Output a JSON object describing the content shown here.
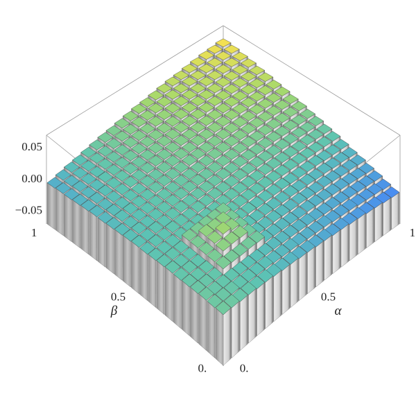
{
  "chart_data": {
    "type": "bar3d",
    "xlabel": "α",
    "ylabel": "β",
    "x": [
      0,
      0.05,
      0.1,
      0.15,
      0.2,
      0.25,
      0.3,
      0.35,
      0.4,
      0.45,
      0.5,
      0.55,
      0.6,
      0.65,
      0.7,
      0.75,
      0.8,
      0.85,
      0.9,
      0.95,
      1
    ],
    "y": [
      0,
      0.05,
      0.1,
      0.15,
      0.2,
      0.25,
      0.3,
      0.35,
      0.4,
      0.45,
      0.5,
      0.55,
      0.6,
      0.65,
      0.7,
      0.75,
      0.8,
      0.85,
      0.9,
      0.95,
      1
    ],
    "values": [
      [
        0.01,
        0.009,
        0.007,
        0.006,
        0.004,
        0.003,
        0.001,
        -0.001,
        -0.002,
        -0.004,
        -0.005,
        -0.007,
        -0.008,
        -0.01,
        -0.011,
        -0.013,
        -0.014,
        -0.016,
        -0.017,
        -0.019,
        -0.02
      ],
      [
        0.009,
        0.008,
        0.007,
        0.005,
        0.004,
        0.003,
        0.002,
        0,
        -0.001,
        -0.002,
        -0.004,
        -0.005,
        -0.006,
        -0.007,
        -0.009,
        -0.01,
        -0.011,
        -0.013,
        -0.014,
        -0.015,
        -0.017
      ],
      [
        0.009,
        0.007,
        0.006,
        0.005,
        0.004,
        0.003,
        0.002,
        0.001,
        0,
        -0.001,
        -0.002,
        -0.003,
        -0.004,
        -0.006,
        -0.007,
        -0.008,
        -0.009,
        -0.01,
        -0.011,
        -0.012,
        -0.013
      ],
      [
        0.008,
        0.007,
        0.006,
        0.013,
        0.012,
        0.011,
        0.011,
        0.01,
        0.001,
        0,
        -0.001,
        -0.002,
        -0.003,
        -0.003,
        -0.004,
        -0.005,
        -0.006,
        -0.007,
        -0.008,
        -0.009,
        -0.01
      ],
      [
        0.007,
        0.006,
        0.006,
        0.013,
        0.019,
        0.019,
        0.018,
        0.01,
        0.002,
        0.001,
        0.001,
        0,
        -0.001,
        -0.001,
        -0.002,
        -0.003,
        -0.003,
        -0.004,
        -0.005,
        -0.005,
        -0.006
      ],
      [
        0.006,
        0.006,
        0.005,
        0.013,
        0.02,
        0.024,
        0.019,
        0.011,
        0.003,
        0.002,
        0.002,
        0.001,
        0.001,
        0.001,
        0,
        0,
        -0.001,
        -0.001,
        -0.002,
        -0.002,
        -0.003
      ],
      [
        0.006,
        0.005,
        0.005,
        0.013,
        0.02,
        0.019,
        0.019,
        0.012,
        0.004,
        0.004,
        0.003,
        0.003,
        0.003,
        0.003,
        0.002,
        0.002,
        0.002,
        0.002,
        0.001,
        0.001,
        0.001
      ],
      [
        0.005,
        0.005,
        0.005,
        0.013,
        0.013,
        0.013,
        0.013,
        0.013,
        0.005,
        0.005,
        0.005,
        0.005,
        0.005,
        0.005,
        0.005,
        0.005,
        0.005,
        0.005,
        0.005,
        0.005,
        0.005
      ],
      [
        0.004,
        0.004,
        0.004,
        0.005,
        0.005,
        0.005,
        0.005,
        0.005,
        0.006,
        0.006,
        0.006,
        0.006,
        0.006,
        0.007,
        0.007,
        0.007,
        0.007,
        0.007,
        0.008,
        0.008,
        0.008
      ],
      [
        0.003,
        0.004,
        0.004,
        0.005,
        0.005,
        0.005,
        0.006,
        0.006,
        0.007,
        0.007,
        0.007,
        0.008,
        0.008,
        0.009,
        0.009,
        0.009,
        0.01,
        0.01,
        0.011,
        0.011,
        0.012
      ],
      [
        0.003,
        0.003,
        0.004,
        0.004,
        0.005,
        0.006,
        0.006,
        0.007,
        0.008,
        0.008,
        0.009,
        0.009,
        0.01,
        0.011,
        0.011,
        0.012,
        0.013,
        0.013,
        0.014,
        0.014,
        0.015
      ],
      [
        0.002,
        0.003,
        0.003,
        0.004,
        0.005,
        0.006,
        0.007,
        0.008,
        0.009,
        0.009,
        0.01,
        0.011,
        0.012,
        0.013,
        0.014,
        0.014,
        0.015,
        0.016,
        0.017,
        0.018,
        0.019
      ],
      [
        0.001,
        0.002,
        0.003,
        0.004,
        0.005,
        0.006,
        0.007,
        0.008,
        0.009,
        0.01,
        0.011,
        0.013,
        0.014,
        0.015,
        0.016,
        0.017,
        0.018,
        0.019,
        0.02,
        0.021,
        0.022
      ],
      [
        0,
        0.002,
        0.003,
        0.004,
        0.005,
        0.007,
        0.008,
        0.009,
        0.01,
        0.012,
        0.013,
        0.014,
        0.015,
        0.017,
        0.018,
        0.019,
        0.02,
        0.022,
        0.023,
        0.024,
        0.026
      ],
      [
        -0.001,
        0.001,
        0.002,
        0.004,
        0.005,
        0.007,
        0.008,
        0.01,
        0.011,
        0.013,
        0.014,
        0.016,
        0.017,
        0.019,
        0.02,
        0.022,
        0.023,
        0.025,
        0.026,
        0.028,
        0.029
      ],
      [
        -0.001,
        0,
        0.002,
        0.004,
        0.006,
        0.007,
        0.009,
        0.011,
        0.012,
        0.014,
        0.016,
        0.017,
        0.019,
        0.021,
        0.022,
        0.024,
        0.026,
        0.027,
        0.029,
        0.031,
        0.033
      ],
      [
        -0.002,
        0,
        0.002,
        0.004,
        0.006,
        0.008,
        0.009,
        0.011,
        0.013,
        0.015,
        0.017,
        0.019,
        0.021,
        0.023,
        0.025,
        0.027,
        0.028,
        0.03,
        0.032,
        0.034,
        0.036
      ],
      [
        -0.003,
        -0.001,
        0.001,
        0.004,
        0.006,
        0.008,
        0.01,
        0.012,
        0.014,
        0.016,
        0.018,
        0.02,
        0.023,
        0.025,
        0.027,
        0.029,
        0.031,
        0.033,
        0.035,
        0.037,
        0.04
      ],
      [
        -0.004,
        -0.001,
        0.001,
        0.003,
        0.006,
        0.008,
        0.01,
        0.013,
        0.015,
        0.017,
        0.02,
        0.022,
        0.024,
        0.027,
        0.029,
        0.031,
        0.034,
        0.036,
        0.038,
        0.041,
        0.043
      ],
      [
        -0.004,
        -0.002,
        0.001,
        0.003,
        0.006,
        0.008,
        0.011,
        0.014,
        0.016,
        0.019,
        0.021,
        0.024,
        0.026,
        0.029,
        0.031,
        0.034,
        0.036,
        0.039,
        0.041,
        0.044,
        0.047
      ],
      [
        -0.005,
        -0.002,
        0.001,
        0.003,
        0.006,
        0.009,
        0.012,
        0.014,
        0.017,
        0.02,
        0.023,
        0.025,
        0.028,
        0.031,
        0.034,
        0.036,
        0.039,
        0.042,
        0.045,
        0.047,
        0.05
      ]
    ],
    "xlim": [
      -0.025,
      1.025
    ],
    "ylim": [
      -0.025,
      1.025
    ],
    "zlim": [
      -0.07,
      0.07
    ],
    "xticks": [
      {
        "value": 0,
        "label": "0."
      },
      0.5,
      1
    ],
    "yticks": [
      {
        "value": 0,
        "label": "0."
      },
      0.5,
      1
    ],
    "zticks": [
      0.05,
      {
        "value": 0,
        "label": "0.00"
      },
      {
        "value": -0.05,
        "label": "−0.05"
      }
    ],
    "colormap": [
      "#4a8ef0",
      "#5cc3b4",
      "#a6d96c",
      "#f3e052"
    ]
  }
}
